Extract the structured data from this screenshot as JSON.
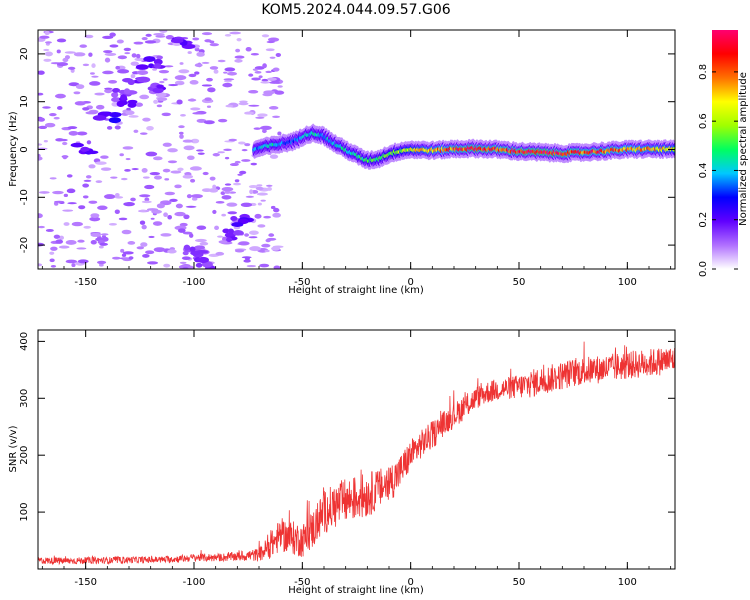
{
  "title": "KOM5.2024.044.09.57.G06",
  "chart_data": [
    {
      "type": "heatmap",
      "xlabel": "Height of straight line (km)",
      "ylabel": "Frequency (Hz)",
      "xlim": [
        -172,
        122
      ],
      "ylim": [
        -25,
        25
      ],
      "x_ticks": [
        -150,
        -100,
        -50,
        0,
        50,
        100
      ],
      "x_tick_labels": [
        "-150",
        "-100",
        "-50",
        "0",
        "50",
        "100"
      ],
      "y_ticks": [
        -20,
        -10,
        0,
        10,
        20
      ],
      "y_tick_labels": [
        "-20",
        "-10",
        "0",
        "10",
        "20"
      ],
      "colorbar": {
        "label": "Normalized spectral amplitude",
        "range": [
          0,
          0.97
        ],
        "ticks": [
          0.0,
          0.2,
          0.4,
          0.6,
          0.8
        ],
        "tick_labels": [
          "0.0",
          "0.2",
          "0.4",
          "0.6",
          "0.8"
        ],
        "colors": [
          "#ffffff",
          "#b070ff",
          "#6000ff",
          "#0000ff",
          "#00c8ff",
          "#00ff60",
          "#a0ff00",
          "#ffff00",
          "#ff7000",
          "#ff0000",
          "#ff0070"
        ]
      },
      "ridge": [
        {
          "x": -72,
          "f": 0.0,
          "a": 0.35
        },
        {
          "x": -68,
          "f": 0.5,
          "a": 0.4
        },
        {
          "x": -62,
          "f": 1.0,
          "a": 0.45
        },
        {
          "x": -57,
          "f": 1.4,
          "a": 0.3
        },
        {
          "x": -52,
          "f": 2.0,
          "a": 0.35
        },
        {
          "x": -48,
          "f": 3.2,
          "a": 0.4
        },
        {
          "x": -44,
          "f": 3.4,
          "a": 0.45
        },
        {
          "x": -40,
          "f": 2.8,
          "a": 0.4
        },
        {
          "x": -36,
          "f": 1.5,
          "a": 0.4
        },
        {
          "x": -30,
          "f": 0.0,
          "a": 0.45
        },
        {
          "x": -25,
          "f": -1.2,
          "a": 0.45
        },
        {
          "x": -20,
          "f": -2.3,
          "a": 0.5
        },
        {
          "x": -15,
          "f": -2.0,
          "a": 0.5
        },
        {
          "x": -10,
          "f": -1.0,
          "a": 0.55
        },
        {
          "x": -5,
          "f": -0.3,
          "a": 0.6
        },
        {
          "x": 0,
          "f": 0.0,
          "a": 0.65
        },
        {
          "x": 10,
          "f": -0.2,
          "a": 0.75
        },
        {
          "x": 20,
          "f": 0.1,
          "a": 0.85
        },
        {
          "x": 30,
          "f": 0.2,
          "a": 0.9
        },
        {
          "x": 40,
          "f": 0.0,
          "a": 0.85
        },
        {
          "x": 50,
          "f": -0.4,
          "a": 0.9
        },
        {
          "x": 60,
          "f": -0.6,
          "a": 0.95
        },
        {
          "x": 70,
          "f": -0.8,
          "a": 0.9
        },
        {
          "x": 80,
          "f": -0.6,
          "a": 0.85
        },
        {
          "x": 90,
          "f": -0.3,
          "a": 0.85
        },
        {
          "x": 100,
          "f": 0.0,
          "a": 0.8
        },
        {
          "x": 110,
          "f": 0.1,
          "a": 0.75
        },
        {
          "x": 122,
          "f": 0.0,
          "a": 0.7
        }
      ],
      "noise_blobs": [
        {
          "x": -150,
          "f": 0,
          "a": 0.22
        },
        {
          "x": -140,
          "f": 7,
          "a": 0.25
        },
        {
          "x": -130,
          "f": 10,
          "a": 0.22
        },
        {
          "x": -127,
          "f": 14,
          "a": 0.2
        },
        {
          "x": -120,
          "f": 18,
          "a": 0.2
        },
        {
          "x": -105,
          "f": 22,
          "a": 0.2
        },
        {
          "x": -78,
          "f": -15,
          "a": 0.22
        },
        {
          "x": -82,
          "f": -18,
          "a": 0.2
        },
        {
          "x": -100,
          "f": -21,
          "a": 0.18
        },
        {
          "x": -95,
          "f": -24,
          "a": 0.16
        },
        {
          "x": -118,
          "f": 13,
          "a": 0.18
        },
        {
          "x": -133,
          "f": 12,
          "a": 0.16
        }
      ]
    },
    {
      "type": "line",
      "xlabel": "Height of straight line (km)",
      "ylabel": "SNR (v/v)",
      "xlim": [
        -172,
        122
      ],
      "ylim": [
        0,
        420
      ],
      "x_ticks": [
        -150,
        -100,
        -50,
        0,
        50,
        100
      ],
      "x_tick_labels": [
        "-150",
        "-100",
        "-50",
        "0",
        "50",
        "100"
      ],
      "y_ticks": [
        100,
        200,
        300,
        400
      ],
      "y_tick_labels": [
        "100",
        "200",
        "300",
        "400"
      ],
      "series": [
        {
          "color": "#ee3333",
          "x": [
            -172,
            -160,
            -150,
            -140,
            -130,
            -120,
            -110,
            -100,
            -90,
            -80,
            -70,
            -65,
            -60,
            -55,
            -50,
            -45,
            -40,
            -35,
            -30,
            -25,
            -20,
            -15,
            -10,
            -5,
            0,
            5,
            10,
            15,
            20,
            25,
            30,
            35,
            40,
            45,
            50,
            55,
            60,
            65,
            70,
            75,
            80,
            85,
            90,
            95,
            100,
            105,
            110,
            115,
            122
          ],
          "values": [
            15,
            14,
            15,
            15,
            16,
            16,
            17,
            20,
            20,
            22,
            25,
            40,
            60,
            55,
            50,
            70,
            100,
            110,
            120,
            125,
            130,
            140,
            150,
            170,
            200,
            220,
            235,
            255,
            270,
            285,
            300,
            310,
            315,
            318,
            320,
            325,
            330,
            335,
            340,
            345,
            348,
            350,
            352,
            355,
            358,
            360,
            362,
            365,
            368
          ],
          "noise": [
            6,
            6,
            6,
            6,
            6,
            6,
            6,
            7,
            7,
            8,
            12,
            22,
            30,
            30,
            30,
            35,
            38,
            40,
            40,
            40,
            40,
            35,
            35,
            30,
            28,
            25,
            25,
            22,
            22,
            22,
            20,
            20,
            20,
            20,
            22,
            25,
            25,
            25,
            25,
            25,
            25,
            25,
            25,
            25,
            25,
            25,
            25,
            25,
            25
          ]
        }
      ]
    }
  ]
}
